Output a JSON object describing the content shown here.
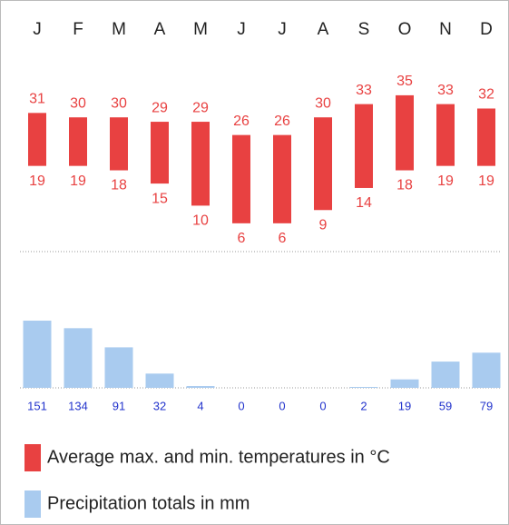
{
  "chart_data": [
    {
      "type": "range",
      "categories": [
        "J",
        "F",
        "M",
        "A",
        "M",
        "J",
        "J",
        "A",
        "S",
        "O",
        "N",
        "D"
      ],
      "series": [
        {
          "name": "Average max. and min. temperatures in °C",
          "color": "#e84141",
          "high": [
            31,
            30,
            30,
            29,
            29,
            26,
            26,
            30,
            33,
            35,
            33,
            32
          ],
          "low": [
            19,
            19,
            18,
            15,
            10,
            6,
            6,
            9,
            14,
            18,
            19,
            19
          ]
        }
      ]
    },
    {
      "type": "bar",
      "series": [
        {
          "name": "Precipitation totals in mm",
          "color": "#a9cbef",
          "values": [
            151,
            134,
            91,
            32,
            4,
            0,
            0,
            0,
            2,
            19,
            59,
            79
          ]
        }
      ]
    }
  ]
}
